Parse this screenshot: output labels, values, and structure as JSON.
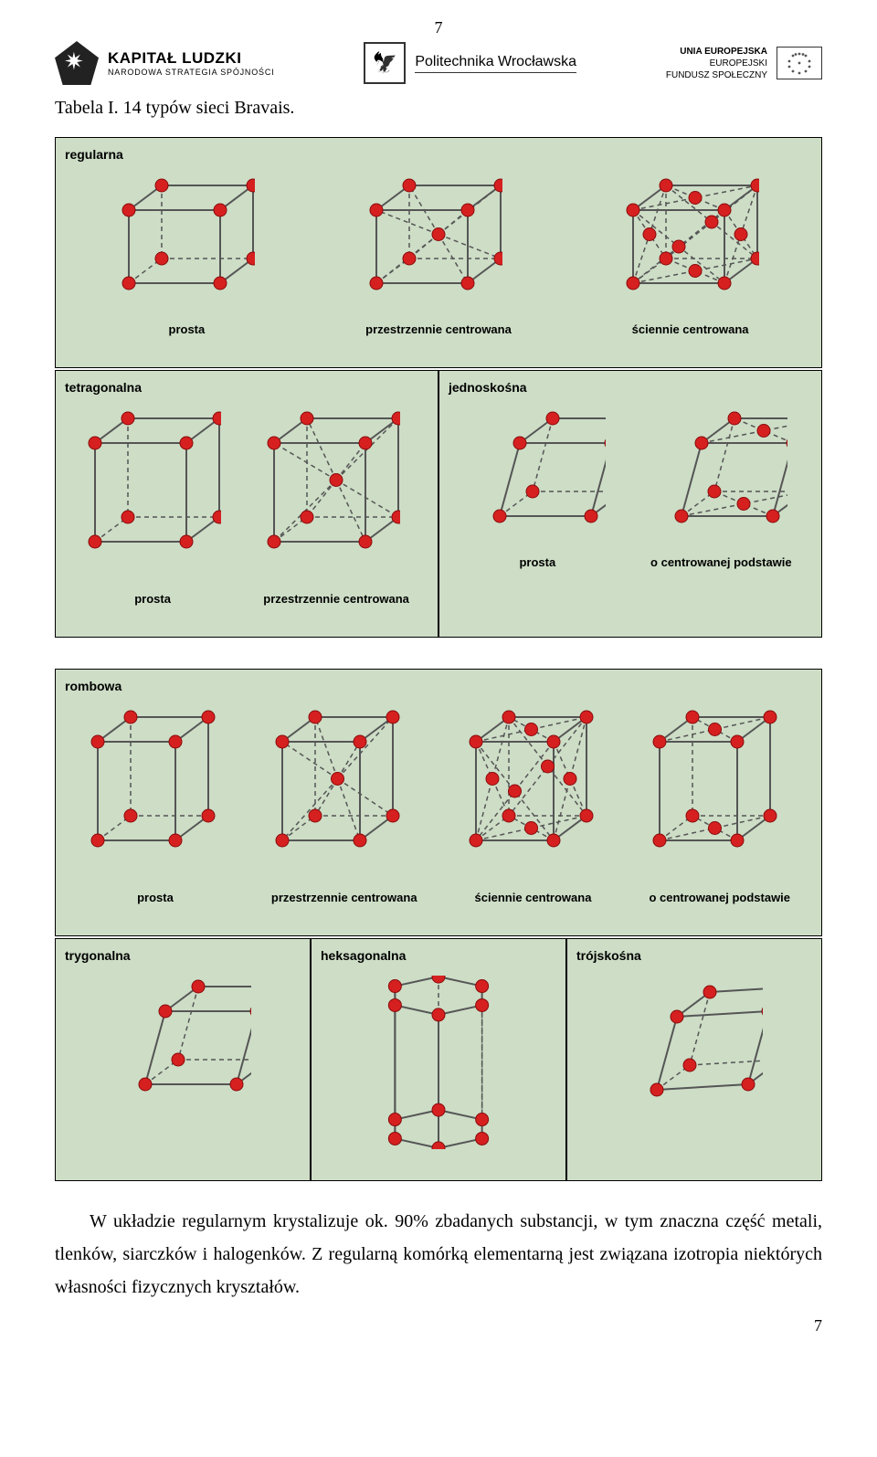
{
  "page_number_top": "7",
  "page_number_bottom": "7",
  "header": {
    "kapital": {
      "line1": "KAPITAŁ LUDZKI",
      "line2": "NARODOWA STRATEGIA SPÓJNOŚCI"
    },
    "politechnika": "Politechnika Wrocławska",
    "eu": {
      "line1": "UNIA EUROPEJSKA",
      "line2": "EUROPEJSKI",
      "line3": "FUNDUSZ SPOŁECZNY"
    }
  },
  "caption": "Tabela I. 14 typów sieci Bravais.",
  "body": "W układzie regularnym krystalizuje ok. 90% zbadanych substancji, w tym znaczna część metali, tlenków, siarczków i halogenków. Z regularną komórką elementarną jest związana izotropia niektórych własności fizycznych kryształów.",
  "colors": {
    "panel_bg": "#cdddc6",
    "panel_border": "#000000",
    "edge": "#555555",
    "atom_fill": "#d62020",
    "atom_stroke": "#8a0b0b",
    "text": "#000000"
  },
  "atom_radius": 7,
  "systems": [
    {
      "name": "regularna",
      "layout": "full",
      "cells": [
        {
          "label": "prosta",
          "shape": "cube",
          "atoms": "P"
        },
        {
          "label": "przestrzennie centrowana",
          "shape": "cube",
          "atoms": "I"
        },
        {
          "label": "ściennie centrowana",
          "shape": "cube",
          "atoms": "F"
        }
      ]
    },
    {
      "layout": "split2",
      "panels": [
        {
          "name": "tetragonalna",
          "cells": [
            {
              "label": "prosta",
              "shape": "tetra",
              "atoms": "P"
            },
            {
              "label": "przestrzennie centrowana",
              "shape": "tetra",
              "atoms": "I"
            }
          ]
        },
        {
          "name": "jednoskośna",
          "cells": [
            {
              "label": "prosta",
              "shape": "mono",
              "atoms": "P"
            },
            {
              "label": "o centrowanej podstawie",
              "shape": "mono",
              "atoms": "C"
            }
          ]
        }
      ]
    },
    {
      "name": "rombowa",
      "layout": "full",
      "cells": [
        {
          "label": "prosta",
          "shape": "ortho",
          "atoms": "P"
        },
        {
          "label": "przestrzennie centrowana",
          "shape": "ortho",
          "atoms": "I"
        },
        {
          "label": "ściennie centrowana",
          "shape": "ortho",
          "atoms": "F"
        },
        {
          "label": "o centrowanej podstawie",
          "shape": "ortho",
          "atoms": "C"
        }
      ]
    },
    {
      "layout": "split3",
      "panels": [
        {
          "name": "trygonalna",
          "cells": [
            {
              "label": "",
              "shape": "rhomb",
              "atoms": "P"
            }
          ]
        },
        {
          "name": "heksagonalna",
          "cells": [
            {
              "label": "",
              "shape": "hex",
              "atoms": "P"
            }
          ]
        },
        {
          "name": "trójskośna",
          "cells": [
            {
              "label": "",
              "shape": "tri",
              "atoms": "P"
            }
          ]
        }
      ]
    }
  ]
}
